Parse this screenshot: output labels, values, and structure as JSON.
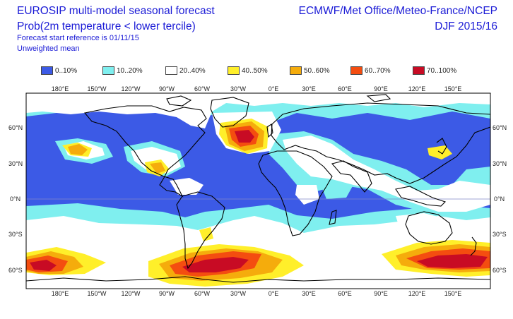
{
  "header": {
    "title": "EUROSIP multi-model seasonal forecast",
    "subtitle": "Prob(2m temperature < lower tercile)",
    "start_ref": "Forecast start reference is 01/11/15",
    "mean_type": "Unweighted mean",
    "centres": "ECMWF/Met Office/Meteo-France/NCEP",
    "season": "DJF 2015/16"
  },
  "legend": [
    {
      "label": "0..10%",
      "color": "#3c5ae6"
    },
    {
      "label": "10..20%",
      "color": "#7fefef"
    },
    {
      "label": "20..40%",
      "color": "#ffffff"
    },
    {
      "label": "40..50%",
      "color": "#ffef2a"
    },
    {
      "label": "50..60%",
      "color": "#f5ac0c"
    },
    {
      "label": "60..70%",
      "color": "#f44d10"
    },
    {
      "label": "70..100%",
      "color": "#c80b24"
    }
  ],
  "axes": {
    "lon_labels": [
      "180°E",
      "150°W",
      "120°W",
      "90°W",
      "60°W",
      "30°W",
      "0°E",
      "30°E",
      "60°E",
      "90°E",
      "120°E",
      "150°E"
    ],
    "lat_labels_left": [
      "60°N",
      "30°N",
      "0°N",
      "30°S",
      "60°S"
    ],
    "lat_labels_right": [
      "60°N",
      "30°N",
      "0°N",
      "30°S",
      "60°S"
    ]
  },
  "map_style": {
    "ocean_base": "#3c5ae6",
    "coast_color": "#000000",
    "equator_color": "#7f86c9"
  }
}
